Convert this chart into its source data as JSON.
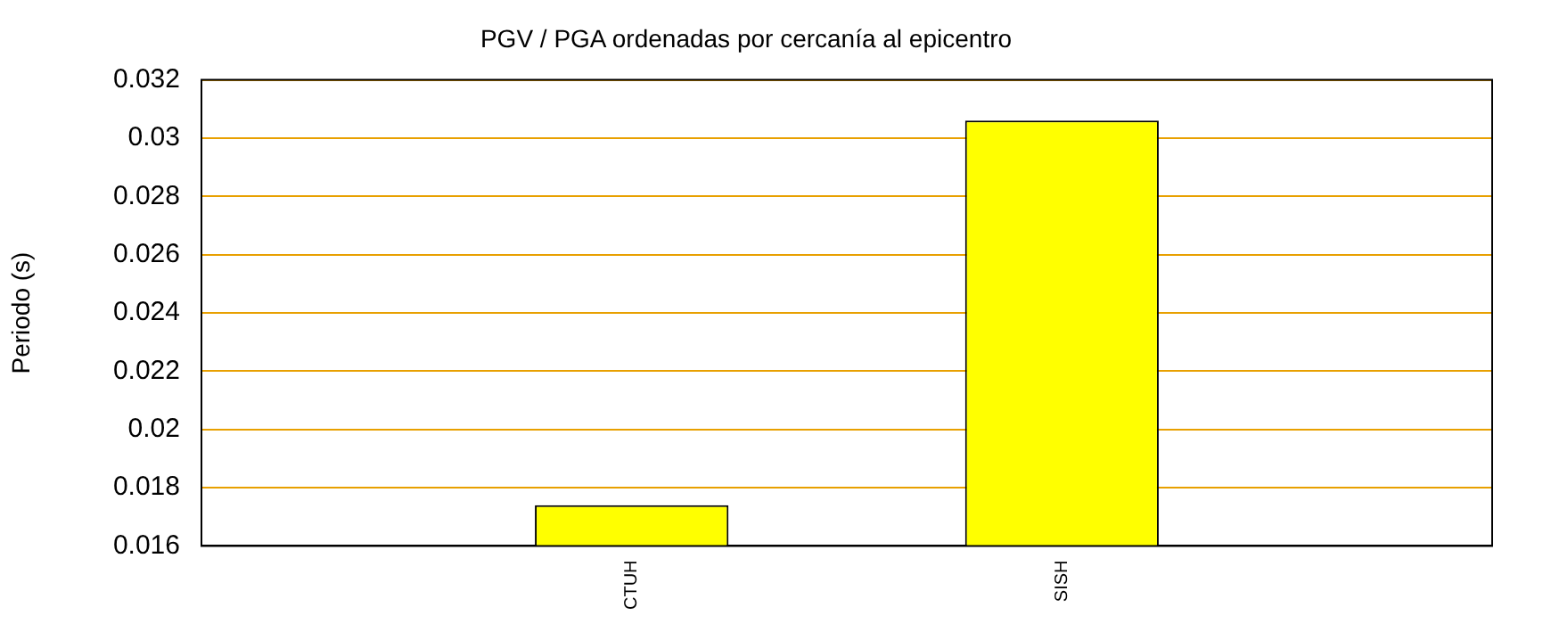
{
  "chart_data": {
    "type": "bar",
    "title": "PGV / PGA ordenadas por cercanía al epicentro",
    "ylabel": "Periodo (s)",
    "categories": [
      null,
      "CTUH",
      "SISH",
      null
    ],
    "values": [
      null,
      0.0174,
      0.0306,
      null
    ],
    "color": "#ffff00",
    "ylim": [
      0.016,
      0.032
    ],
    "yticks": [
      0.016,
      0.018,
      0.02,
      0.022,
      0.024,
      0.026,
      0.028,
      0.03,
      0.032
    ],
    "grid": "y",
    "legend": false
  }
}
